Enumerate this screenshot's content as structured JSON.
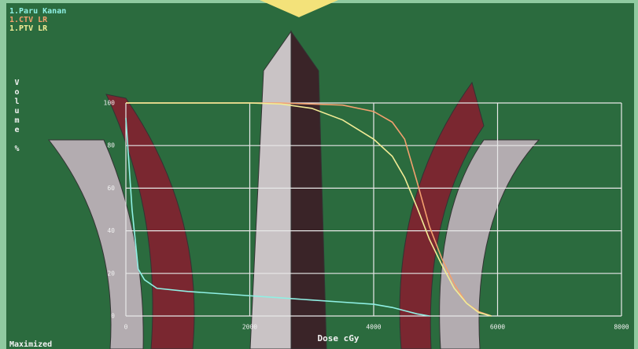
{
  "chart_data": {
    "type": "line",
    "x_label": "Dose cGy",
    "y_label": "Volume %",
    "status": "Maximized",
    "x": [
      0,
      100,
      200,
      300,
      500,
      1000,
      2000,
      2500,
      3000,
      3500,
      4000,
      4300,
      4500,
      4700,
      4900,
      5100,
      5300,
      5500,
      5700,
      5900,
      6000
    ],
    "series": [
      {
        "name": "1.Paru Kanan",
        "color": "#8ff0e4",
        "values": [
          93,
          50,
          22,
          17,
          13,
          11.5,
          9.5,
          8.5,
          7.5,
          6.5,
          5.5,
          4,
          2.5,
          1,
          0,
          null,
          null,
          null,
          null,
          null,
          null
        ]
      },
      {
        "name": "1.CTV LR",
        "color": "#f3a06e",
        "values": [
          100,
          100,
          100,
          100,
          100,
          100,
          100,
          100,
          99.5,
          99,
          96,
          91,
          83,
          63,
          42,
          27,
          15,
          6,
          2,
          0,
          null
        ]
      },
      {
        "name": "1.PTV LR",
        "color": "#f2ec96",
        "values": [
          100,
          100,
          100,
          100,
          100,
          100,
          100,
          99.5,
          97.5,
          92,
          83,
          75,
          65,
          51,
          36,
          24,
          13,
          6,
          1.5,
          0,
          null
        ]
      }
    ],
    "xlim": [
      0,
      8000
    ],
    "xticks": [
      0,
      2000,
      4000,
      6000,
      8000
    ],
    "ylim": [
      0,
      100
    ],
    "yticks": [
      0,
      20,
      40,
      60,
      80,
      100
    ],
    "grid": true
  }
}
